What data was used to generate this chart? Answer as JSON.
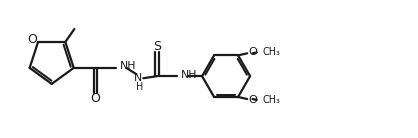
{
  "bg_color": "#ffffff",
  "line_color": "#1a1a1a",
  "line_width": 1.6,
  "font_size": 8.5,
  "fig_width": 4.18,
  "fig_height": 1.38,
  "dpi": 100,
  "xlim": [
    0,
    10
  ],
  "ylim": [
    0,
    3.3
  ]
}
